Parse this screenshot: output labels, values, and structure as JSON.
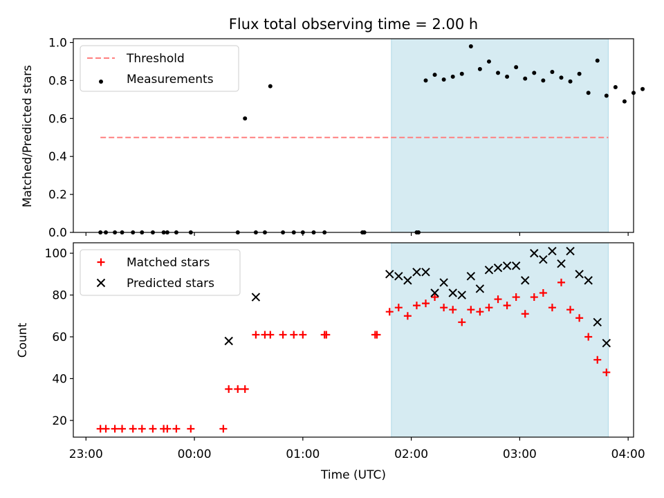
{
  "title": "Flux total observing time = 2.00 h",
  "colors": {
    "threshold": "#ff7f7f",
    "measurement": "#000000",
    "matched": "#ff0000",
    "predicted": "#000000",
    "shade": "#add8e6"
  },
  "chart_data": [
    {
      "type": "scatter",
      "panel": "top",
      "ylabel": "Matched/Predicted stars",
      "xlabel": "",
      "ylim": [
        0,
        1.02
      ],
      "xlim": [
        "22:53",
        "04:03"
      ],
      "yticks": [
        "0.0",
        "0.2",
        "0.4",
        "0.6",
        "0.8",
        "1.0"
      ],
      "shaded_interval": [
        "01:49",
        "03:49"
      ],
      "legend": {
        "position": "top-left",
        "entries": [
          {
            "label": "Threshold",
            "marker": "dashed-line"
          },
          {
            "label": "Measurements",
            "marker": "dot"
          }
        ]
      },
      "series": [
        {
          "name": "Threshold",
          "style": "dashed-line",
          "x": [
            "23:08",
            "03:49"
          ],
          "y": [
            0.5,
            0.5
          ]
        },
        {
          "name": "Measurements",
          "style": "dot",
          "points": [
            [
              "23:08",
              0.0
            ],
            [
              "23:11",
              0.0
            ],
            [
              "23:16",
              0.0
            ],
            [
              "23:20",
              0.0
            ],
            [
              "23:26",
              0.0
            ],
            [
              "23:31",
              0.0
            ],
            [
              "23:37",
              0.0
            ],
            [
              "23:43",
              0.0
            ],
            [
              "23:45",
              0.0
            ],
            [
              "23:50",
              0.0
            ],
            [
              "23:58",
              0.0
            ],
            [
              "00:24",
              0.0
            ],
            [
              "00:28",
              0.6
            ],
            [
              "00:34",
              0.0
            ],
            [
              "00:39",
              0.0
            ],
            [
              "00:42",
              0.77
            ],
            [
              "00:49",
              0.0
            ],
            [
              "00:55",
              0.0
            ],
            [
              "01:00",
              0.0
            ],
            [
              "01:06",
              0.0
            ],
            [
              "01:12",
              0.0
            ],
            [
              "01:33",
              0.0
            ],
            [
              "01:34",
              0.0
            ],
            [
              "02:03",
              0.0
            ],
            [
              "02:04",
              0.0
            ],
            [
              "02:08",
              0.8
            ],
            [
              "02:13",
              0.83
            ],
            [
              "02:18",
              0.805
            ],
            [
              "02:23",
              0.82
            ],
            [
              "02:28",
              0.835
            ],
            [
              "02:33",
              0.98
            ],
            [
              "02:38",
              0.86
            ],
            [
              "02:43",
              0.9
            ],
            [
              "02:48",
              0.84
            ],
            [
              "02:53",
              0.82
            ],
            [
              "02:58",
              0.87
            ],
            [
              "03:03",
              0.81
            ],
            [
              "03:08",
              0.84
            ],
            [
              "03:13",
              0.8
            ],
            [
              "03:18",
              0.845
            ],
            [
              "03:23",
              0.815
            ],
            [
              "03:28",
              0.795
            ],
            [
              "03:33",
              0.835
            ],
            [
              "03:38",
              0.735
            ],
            [
              "03:43",
              0.905
            ],
            [
              "03:48",
              0.72
            ],
            [
              "03:53",
              0.765
            ],
            [
              "03:58",
              0.69
            ],
            [
              "04:03",
              0.735
            ],
            [
              "04:08",
              0.755
            ]
          ]
        }
      ]
    },
    {
      "type": "scatter",
      "panel": "bottom",
      "ylabel": "Count",
      "xlabel": "Time (UTC)",
      "ylim": [
        12,
        105
      ],
      "xlim": [
        "22:53",
        "04:03"
      ],
      "yticks": [
        "20",
        "40",
        "60",
        "80",
        "100"
      ],
      "xticks": [
        "23:00",
        "00:00",
        "01:00",
        "02:00",
        "03:00",
        "04:00"
      ],
      "shaded_interval": [
        "01:49",
        "03:49"
      ],
      "legend": {
        "position": "top-left",
        "entries": [
          {
            "label": "Matched stars",
            "marker": "plus"
          },
          {
            "label": "Predicted stars",
            "marker": "x"
          }
        ]
      },
      "series": [
        {
          "name": "Matched stars",
          "style": "plus",
          "points": [
            [
              "23:08",
              16
            ],
            [
              "23:11",
              16
            ],
            [
              "23:16",
              16
            ],
            [
              "23:20",
              16
            ],
            [
              "23:26",
              16
            ],
            [
              "23:31",
              16
            ],
            [
              "23:37",
              16
            ],
            [
              "23:43",
              16
            ],
            [
              "23:45",
              16
            ],
            [
              "23:50",
              16
            ],
            [
              "23:58",
              16
            ],
            [
              "00:16",
              16
            ],
            [
              "00:19",
              35
            ],
            [
              "00:24",
              35
            ],
            [
              "00:28",
              35
            ],
            [
              "00:34",
              61
            ],
            [
              "00:39",
              61
            ],
            [
              "00:42",
              61
            ],
            [
              "00:49",
              61
            ],
            [
              "00:55",
              61
            ],
            [
              "01:00",
              61
            ],
            [
              "01:12",
              61
            ],
            [
              "01:13",
              61
            ],
            [
              "01:40",
              61
            ],
            [
              "01:41",
              61
            ],
            [
              "01:48",
              72
            ],
            [
              "01:53",
              74
            ],
            [
              "01:58",
              70
            ],
            [
              "02:03",
              75
            ],
            [
              "02:08",
              76
            ],
            [
              "02:13",
              79
            ],
            [
              "02:18",
              74
            ],
            [
              "02:23",
              73
            ],
            [
              "02:28",
              67
            ],
            [
              "02:33",
              73
            ],
            [
              "02:38",
              72
            ],
            [
              "02:43",
              74
            ],
            [
              "02:48",
              78
            ],
            [
              "02:53",
              75
            ],
            [
              "02:58",
              79
            ],
            [
              "03:03",
              71
            ],
            [
              "03:08",
              79
            ],
            [
              "03:13",
              81
            ],
            [
              "03:18",
              74
            ],
            [
              "03:23",
              86
            ],
            [
              "03:28",
              73
            ],
            [
              "03:33",
              69
            ],
            [
              "03:38",
              60
            ],
            [
              "03:43",
              49
            ],
            [
              "03:48",
              43
            ]
          ]
        },
        {
          "name": "Predicted stars",
          "style": "x",
          "points": [
            [
              "00:19",
              58
            ],
            [
              "00:34",
              79
            ],
            [
              "01:48",
              90
            ],
            [
              "01:53",
              89
            ],
            [
              "01:58",
              87
            ],
            [
              "02:03",
              91
            ],
            [
              "02:08",
              91
            ],
            [
              "02:13",
              81
            ],
            [
              "02:18",
              86
            ],
            [
              "02:23",
              81
            ],
            [
              "02:28",
              80
            ],
            [
              "02:33",
              89
            ],
            [
              "02:38",
              83
            ],
            [
              "02:43",
              92
            ],
            [
              "02:48",
              93
            ],
            [
              "02:53",
              94
            ],
            [
              "02:58",
              94
            ],
            [
              "03:03",
              87
            ],
            [
              "03:08",
              100
            ],
            [
              "03:13",
              97
            ],
            [
              "03:18",
              101
            ],
            [
              "03:23",
              95
            ],
            [
              "03:28",
              101
            ],
            [
              "03:33",
              90
            ],
            [
              "03:38",
              87
            ],
            [
              "03:43",
              67
            ],
            [
              "03:48",
              57
            ]
          ]
        }
      ]
    }
  ]
}
